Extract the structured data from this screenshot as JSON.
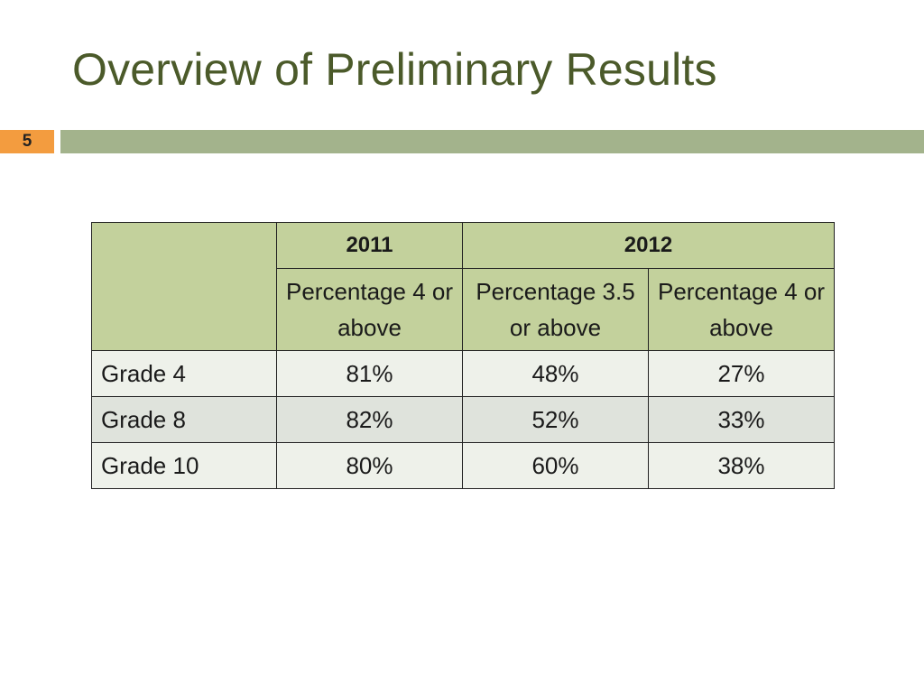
{
  "slide": {
    "title": "Overview of Preliminary Results",
    "number": "5"
  },
  "table": {
    "years": [
      "2011",
      "2012"
    ],
    "subheaders": [
      "Percentage 4 or above",
      "Percentage 3.5 or above",
      "Percentage 4 or above"
    ],
    "rows": [
      {
        "label": "Grade 4",
        "values": [
          "81%",
          "48%",
          "27%"
        ]
      },
      {
        "label": "Grade 8",
        "values": [
          "82%",
          "52%",
          "33%"
        ]
      },
      {
        "label": "Grade 10",
        "values": [
          "80%",
          "60%",
          "38%"
        ]
      }
    ]
  },
  "colors": {
    "title": "#4b5a2a",
    "slide_number_bg": "#f39c3f",
    "accent_bar": "#a3b38c",
    "header_bg": "#c3d19c",
    "row_odd_bg": "#eef1ea",
    "row_even_bg": "#dfe3dc"
  }
}
